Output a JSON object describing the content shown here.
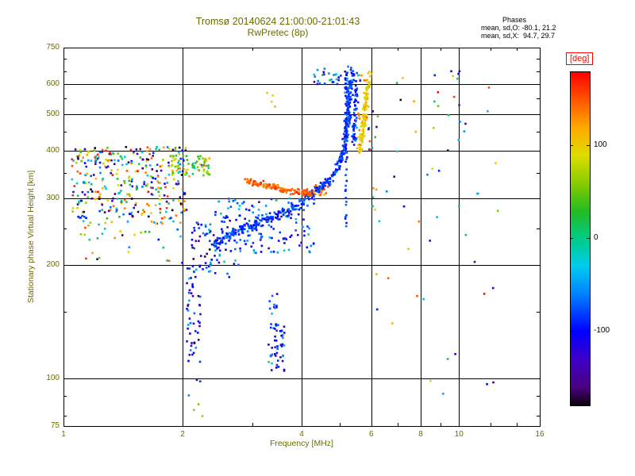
{
  "title": {
    "line1": "Tromsø 20140624 21:00:00-21:01:43",
    "line2": "RwPretec (8p)"
  },
  "annotation": {
    "title": "Phases",
    "line_o": "mean, sd,O: -80.1, 21.2",
    "line_x": "mean, sd,X:  94.7, 29.7"
  },
  "axes": {
    "x": {
      "label": "Frequency [MHz]",
      "scale": "log",
      "min": 1,
      "max": 16,
      "ticks": [
        1,
        2,
        4,
        6,
        8,
        10,
        16
      ],
      "gridlines": [
        2,
        4,
        6,
        8,
        10
      ],
      "minor_ticks": [
        3,
        5,
        7,
        9,
        12,
        14
      ]
    },
    "y": {
      "label": "Stationary phase Virtual Height [km]",
      "scale": "log",
      "min": 75,
      "max": 750,
      "ticks": [
        75,
        100,
        200,
        300,
        400,
        500,
        600,
        750
      ],
      "gridlines": [
        100,
        200,
        300,
        400,
        500,
        600
      ],
      "minor_ticks": [
        80,
        90,
        150,
        250,
        350,
        450,
        550,
        650,
        700
      ]
    }
  },
  "colorbar": {
    "label": "[deg]",
    "min": -180,
    "max": 180,
    "ticks": [
      100,
      0,
      -100
    ],
    "stops": [
      {
        "v": -180,
        "c": "#0d000d"
      },
      {
        "v": -160,
        "c": "#4b0082"
      },
      {
        "v": -130,
        "c": "#3c00c8"
      },
      {
        "v": -100,
        "c": "#0000ff"
      },
      {
        "v": -60,
        "c": "#0080ff"
      },
      {
        "v": -30,
        "c": "#00ccee"
      },
      {
        "v": 0,
        "c": "#00cc88"
      },
      {
        "v": 30,
        "c": "#22bb22"
      },
      {
        "v": 60,
        "c": "#88cc00"
      },
      {
        "v": 90,
        "c": "#dddd00"
      },
      {
        "v": 120,
        "c": "#ffaa00"
      },
      {
        "v": 150,
        "c": "#ff5500"
      },
      {
        "v": 180,
        "c": "#ff0000"
      }
    ]
  },
  "colors": {
    "background": "#ffffff",
    "title_text": "#6b6b00",
    "axis_text": "#6b6b00",
    "annotation_text": "#000000",
    "deg_label": "#ff0000",
    "frame": "#000000"
  },
  "chart_data": {
    "type": "scatter",
    "x_variable": "frequency_MHz",
    "y_variable": "virtual_height_km",
    "color_variable": "phase_deg",
    "x_range": [
      1,
      16
    ],
    "y_range": [
      75,
      750
    ],
    "color_range": [
      -180,
      180
    ],
    "clusters": [
      {
        "name": "left-cloud-main",
        "f_range": [
          1.05,
          2.05
        ],
        "h_range": [
          255,
          410
        ],
        "n": 360,
        "phase_range": [
          -180,
          180
        ]
      },
      {
        "name": "left-cloud-green",
        "f_range": [
          1.85,
          2.35
        ],
        "h_range": [
          340,
          390
        ],
        "n": 70,
        "phase_mean": 70,
        "phase_sd": 45
      },
      {
        "name": "left-cloud-low",
        "f_range": [
          1.1,
          2.0
        ],
        "h_range": [
          200,
          255
        ],
        "n": 28,
        "phase_range": [
          -180,
          180
        ]
      },
      {
        "name": "f-trace-underscatter",
        "f_range": [
          2.4,
          4.3
        ],
        "h_range": [
          215,
          300
        ],
        "n": 150,
        "phase_mean": -75,
        "phase_sd": 35
      },
      {
        "name": "es-column",
        "f_range": [
          2.05,
          2.22
        ],
        "h_range": [
          90,
          200
        ],
        "n": 55,
        "phase_mean": -90,
        "phase_sd": 45
      },
      {
        "name": "es-upper",
        "f_range": [
          2.1,
          2.4
        ],
        "h_range": [
          190,
          260
        ],
        "n": 45,
        "phase_mean": -100,
        "phase_sd": 40
      },
      {
        "name": "mid-low-blue",
        "f_range": [
          2.4,
          2.8
        ],
        "h_range": [
          185,
          225
        ],
        "n": 15,
        "phase_mean": -90,
        "phase_sd": 40
      },
      {
        "name": "blue-clump",
        "f_range": [
          3.3,
          3.62
        ],
        "h_range": [
          105,
          140
        ],
        "n": 48,
        "phase_mean": -90,
        "phase_sd": 30
      },
      {
        "name": "blue-clump-upper",
        "f_range": [
          3.3,
          3.5
        ],
        "h_range": [
          145,
          168
        ],
        "n": 10,
        "phase_mean": -90,
        "phase_sd": 30
      },
      {
        "name": "vertical-line-5p2",
        "f_range": [
          5.15,
          5.22
        ],
        "h_range": [
          245,
          655
        ],
        "n": 65,
        "phase_mean": -90,
        "phase_sd": 20
      },
      {
        "name": "orange-merge",
        "f_range": [
          4.3,
          4.7
        ],
        "h_range": [
          305,
          325
        ],
        "n": 22,
        "phase_mean": 140,
        "phase_sd": 15
      },
      {
        "name": "top-scatter",
        "f_range": [
          4.3,
          5.05
        ],
        "h_range": [
          600,
          660
        ],
        "n": 26,
        "phase_mean": -60,
        "phase_sd": 60
      },
      {
        "name": "yellow-high-pair",
        "f_range": [
          3.25,
          3.45
        ],
        "h_range": [
          520,
          570
        ],
        "n": 4,
        "phase_mean": 100,
        "phase_sd": 15
      },
      {
        "name": "column-6mhz",
        "f_range": [
          5.9,
          6.35
        ],
        "h_range": [
          140,
          580
        ],
        "n": 18,
        "phase_range": [
          -180,
          180
        ]
      },
      {
        "name": "right-sparse",
        "f_range": [
          6.4,
          12.6
        ],
        "h_range": [
          85,
          650
        ],
        "n": 55,
        "phase_range": [
          -180,
          180
        ]
      },
      {
        "name": "bottom-left-few",
        "f_range": [
          2.1,
          2.25
        ],
        "h_range": [
          78,
          90
        ],
        "n": 3,
        "phase_range": [
          0,
          180
        ]
      },
      {
        "name": "x-asymptote-orange-flecks",
        "f_range": [
          5.55,
          5.95
        ],
        "h_range": [
          430,
          640
        ],
        "n": 12,
        "phase_mean": 135,
        "phase_sd": 10
      }
    ],
    "traces": [
      {
        "name": "o-mode-trace",
        "anchors": [
          [
            2.4,
            228
          ],
          [
            2.6,
            238
          ],
          [
            2.8,
            247
          ],
          [
            3.0,
            254
          ],
          [
            3.3,
            263
          ],
          [
            3.6,
            274
          ],
          [
            3.9,
            288
          ],
          [
            4.2,
            305
          ],
          [
            4.5,
            322
          ],
          [
            4.75,
            338
          ],
          [
            4.95,
            362
          ],
          [
            5.1,
            395
          ],
          [
            5.18,
            440
          ],
          [
            5.24,
            500
          ],
          [
            5.28,
            560
          ],
          [
            5.32,
            615
          ],
          [
            5.35,
            648
          ]
        ],
        "n": 430,
        "jitter": [
          1.5,
          3
        ],
        "phase_mean": -85,
        "phase_sd": 18
      },
      {
        "name": "x-mode-low-arc",
        "anchors": [
          [
            2.9,
            334
          ],
          [
            3.1,
            328
          ],
          [
            3.35,
            322
          ],
          [
            3.6,
            317
          ],
          [
            3.85,
            313
          ],
          [
            4.1,
            310
          ],
          [
            4.3,
            308
          ]
        ],
        "n": 150,
        "jitter": [
          1.2,
          2
        ],
        "phase_mean": 145,
        "phase_sd": 12
      },
      {
        "name": "x-mode-asymptote",
        "anchors": [
          [
            5.6,
            395
          ],
          [
            5.65,
            420
          ],
          [
            5.7,
            450
          ],
          [
            5.75,
            490
          ],
          [
            5.8,
            535
          ],
          [
            5.85,
            580
          ],
          [
            5.9,
            615
          ],
          [
            5.95,
            638
          ]
        ],
        "n": 120,
        "jitter": [
          1.5,
          3
        ],
        "phase_mean": 100,
        "phase_sd": 12
      },
      {
        "name": "o-mode-second-vertical",
        "anchors": [
          [
            5.42,
            420
          ],
          [
            5.46,
            480
          ],
          [
            5.5,
            560
          ],
          [
            5.53,
            640
          ]
        ],
        "n": 60,
        "jitter": [
          1.5,
          3
        ],
        "phase_mean": -85,
        "phase_sd": 20
      }
    ]
  }
}
